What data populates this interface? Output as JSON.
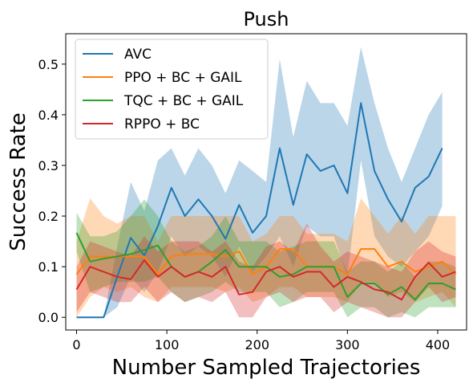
{
  "chart_data": {
    "type": "line",
    "title": "Push",
    "xlabel": "Number Sampled Trajectories",
    "ylabel": "Success Rate",
    "xlim": [
      -12,
      432
    ],
    "ylim": [
      -0.025,
      0.56
    ],
    "xticks": [
      0,
      100,
      200,
      300,
      400
    ],
    "yticks": [
      0.0,
      0.1,
      0.2,
      0.3,
      0.4,
      0.5
    ],
    "ytick_labels": [
      "0.0",
      "0.1",
      "0.2",
      "0.3",
      "0.4",
      "0.5"
    ],
    "grid": false,
    "legend": "upper-left",
    "series": [
      {
        "name": "AVC",
        "color": "#1f77b4",
        "x": [
          0,
          15,
          30,
          45,
          60,
          75,
          90,
          105,
          120,
          135,
          150,
          165,
          180,
          195,
          210,
          225,
          240,
          255,
          270,
          285,
          300,
          315,
          330,
          345,
          360,
          375,
          390,
          405
        ],
        "y": [
          0.0,
          0.0,
          0.0,
          0.08,
          0.157,
          0.122,
          0.18,
          0.256,
          0.2,
          0.233,
          0.2,
          0.155,
          0.222,
          0.167,
          0.2,
          0.334,
          0.222,
          0.322,
          0.289,
          0.3,
          0.245,
          0.423,
          0.289,
          0.233,
          0.189,
          0.256,
          0.278,
          0.334
        ],
        "lower": [
          0.0,
          0.0,
          0.0,
          0.02,
          0.08,
          0.05,
          0.09,
          0.16,
          0.12,
          0.14,
          0.12,
          0.08,
          0.14,
          0.09,
          0.12,
          0.16,
          0.1,
          0.18,
          0.16,
          0.16,
          0.08,
          0.31,
          0.16,
          0.12,
          0.1,
          0.13,
          0.16,
          0.22
        ],
        "upper": [
          0.0,
          0.0,
          0.0,
          0.14,
          0.267,
          0.21,
          0.31,
          0.334,
          0.28,
          0.334,
          0.3,
          0.245,
          0.31,
          0.289,
          0.267,
          0.51,
          0.356,
          0.467,
          0.423,
          0.423,
          0.378,
          0.534,
          0.423,
          0.334,
          0.267,
          0.334,
          0.4,
          0.445
        ]
      },
      {
        "name": "PPO + BC + GAIL",
        "color": "#ff7f0e",
        "x": [
          0,
          15,
          30,
          45,
          60,
          75,
          90,
          105,
          120,
          135,
          150,
          165,
          180,
          195,
          210,
          225,
          240,
          255,
          270,
          285,
          300,
          315,
          330,
          345,
          360,
          375,
          390,
          405,
          420
        ],
        "y": [
          0.085,
          0.12,
          0.12,
          0.12,
          0.12,
          0.12,
          0.085,
          0.12,
          0.125,
          0.125,
          0.125,
          0.12,
          0.13,
          0.085,
          0.1,
          0.135,
          0.135,
          0.1,
          0.1,
          0.1,
          0.085,
          0.135,
          0.135,
          0.1,
          0.11,
          0.09,
          0.1,
          0.11,
          0.085
        ],
        "lower": [
          0.0,
          0.04,
          0.06,
          0.05,
          0.06,
          0.04,
          0.03,
          0.06,
          0.06,
          0.06,
          0.06,
          0.05,
          0.06,
          0.03,
          0.04,
          0.06,
          0.06,
          0.04,
          0.04,
          0.04,
          0.03,
          0.07,
          0.07,
          0.04,
          0.05,
          0.03,
          0.04,
          0.05,
          0.02
        ],
        "upper": [
          0.15,
          0.235,
          0.2,
          0.185,
          0.2,
          0.2,
          0.15,
          0.2,
          0.2,
          0.2,
          0.2,
          0.2,
          0.2,
          0.15,
          0.165,
          0.2,
          0.2,
          0.165,
          0.165,
          0.165,
          0.15,
          0.235,
          0.2,
          0.165,
          0.2,
          0.165,
          0.2,
          0.2,
          0.2
        ]
      },
      {
        "name": "TQC + BC + GAIL",
        "color": "#2ca02c",
        "x": [
          0,
          15,
          30,
          45,
          60,
          75,
          90,
          105,
          120,
          135,
          150,
          165,
          180,
          195,
          210,
          225,
          240,
          255,
          270,
          285,
          300,
          315,
          330,
          345,
          360,
          375,
          390,
          405,
          420
        ],
        "y": [
          0.167,
          0.11,
          0.116,
          0.12,
          0.125,
          0.133,
          0.142,
          0.1,
          0.08,
          0.09,
          0.11,
          0.133,
          0.1,
          0.1,
          0.1,
          0.08,
          0.085,
          0.1,
          0.1,
          0.1,
          0.04,
          0.067,
          0.067,
          0.045,
          0.06,
          0.035,
          0.067,
          0.067,
          0.055
        ],
        "lower": [
          0.13,
          0.05,
          0.06,
          0.07,
          0.07,
          0.07,
          0.08,
          0.05,
          0.03,
          0.04,
          0.05,
          0.07,
          0.05,
          0.05,
          0.05,
          0.02,
          0.03,
          0.05,
          0.05,
          0.05,
          0.0,
          0.02,
          0.02,
          0.0,
          0.01,
          0.0,
          0.02,
          0.02,
          0.02
        ],
        "upper": [
          0.207,
          0.16,
          0.16,
          0.17,
          0.2,
          0.233,
          0.2,
          0.15,
          0.13,
          0.14,
          0.16,
          0.2,
          0.15,
          0.15,
          0.15,
          0.13,
          0.14,
          0.15,
          0.15,
          0.15,
          0.09,
          0.11,
          0.11,
          0.09,
          0.11,
          0.08,
          0.11,
          0.11,
          0.1
        ]
      },
      {
        "name": "RPPO + BC",
        "color": "#d62728",
        "x": [
          0,
          15,
          30,
          45,
          60,
          75,
          90,
          105,
          120,
          135,
          150,
          165,
          180,
          195,
          210,
          225,
          240,
          255,
          270,
          285,
          300,
          315,
          330,
          345,
          360,
          375,
          390,
          405,
          420
        ],
        "y": [
          0.055,
          0.1,
          0.09,
          0.08,
          0.075,
          0.113,
          0.08,
          0.1,
          0.08,
          0.09,
          0.08,
          0.1,
          0.045,
          0.05,
          0.09,
          0.1,
          0.08,
          0.09,
          0.09,
          0.06,
          0.08,
          0.07,
          0.055,
          0.05,
          0.035,
          0.08,
          0.108,
          0.08,
          0.09
        ],
        "lower": [
          0.01,
          0.05,
          0.04,
          0.03,
          0.03,
          0.06,
          0.03,
          0.05,
          0.03,
          0.04,
          0.03,
          0.05,
          0.0,
          0.0,
          0.04,
          0.05,
          0.03,
          0.04,
          0.04,
          0.01,
          0.03,
          0.02,
          0.01,
          0.0,
          0.0,
          0.03,
          0.06,
          0.03,
          0.04
        ],
        "upper": [
          0.1,
          0.15,
          0.14,
          0.13,
          0.12,
          0.16,
          0.13,
          0.15,
          0.15,
          0.15,
          0.13,
          0.15,
          0.11,
          0.1,
          0.14,
          0.15,
          0.13,
          0.185,
          0.14,
          0.11,
          0.13,
          0.12,
          0.11,
          0.1,
          0.09,
          0.13,
          0.15,
          0.13,
          0.12
        ]
      }
    ]
  }
}
